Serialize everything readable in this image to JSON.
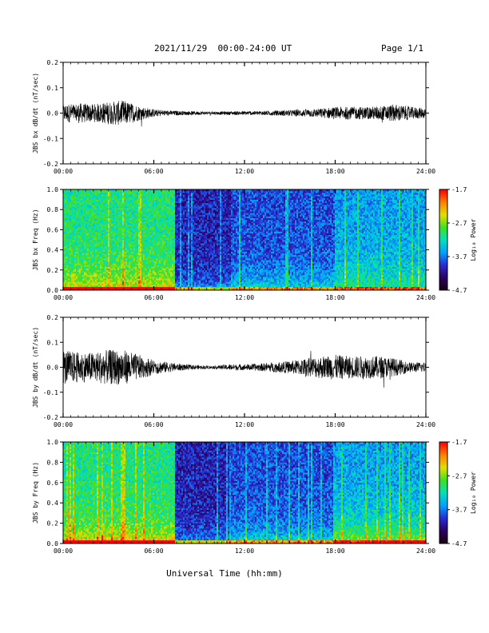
{
  "header": {
    "title": "2021/11/29  00:00-24:00 UT",
    "page": "Page 1/1"
  },
  "xlabel": "Universal Time (hh:mm)",
  "colors": {
    "trace": "#000000",
    "colormap": [
      "#1a0010",
      "#2a0060",
      "#2a2ad0",
      "#00a0ff",
      "#00e0c0",
      "#40e020",
      "#e0e000",
      "#ff8000",
      "#ff0000"
    ]
  },
  "chart_data": [
    {
      "type": "line",
      "ylabel": "JBS bx dB/dt (nT/sec)",
      "xlim": [
        0,
        24
      ],
      "ylim": [
        -0.2,
        0.2
      ],
      "x_ticks": [
        "00:00",
        "06:00",
        "12:00",
        "18:00",
        "24:00"
      ],
      "y_ticks": [
        "-0.2",
        "-0.1",
        "0.0",
        "0.1",
        "0.2"
      ],
      "series": [
        {
          "x": [
            0,
            1,
            2,
            3,
            4,
            5,
            6,
            7,
            8,
            9,
            10,
            11,
            12,
            13,
            14,
            15,
            16,
            17,
            18,
            19,
            20,
            21,
            22,
            23,
            24
          ],
          "amplitude": [
            0.035,
            0.04,
            0.035,
            0.045,
            0.05,
            0.03,
            0.015,
            0.01,
            0.008,
            0.007,
            0.006,
            0.007,
            0.008,
            0.008,
            0.01,
            0.012,
            0.015,
            0.018,
            0.025,
            0.025,
            0.025,
            0.028,
            0.035,
            0.025,
            0.02
          ]
        }
      ]
    },
    {
      "type": "heatmap",
      "ylabel": "JBS bx Freq (Hz)",
      "xlim": [
        0,
        24
      ],
      "ylim": [
        0,
        1.0
      ],
      "x_ticks": [
        "00:00",
        "06:00",
        "12:00",
        "18:00",
        "24:00"
      ],
      "y_ticks": [
        "0.0",
        "0.2",
        "0.4",
        "0.6",
        "0.8",
        "1.0"
      ],
      "colorbar": {
        "label": "Log₁₀ Power",
        "ticks": [
          "-1.7",
          "-2.7",
          "-3.7",
          "-4.7"
        ],
        "range": [
          -4.7,
          -1.7
        ]
      }
    },
    {
      "type": "line",
      "ylabel": "JBS by dB/dt (nT/sec)",
      "xlim": [
        0,
        24
      ],
      "ylim": [
        -0.2,
        0.2
      ],
      "x_ticks": [
        "00:00",
        "06:00",
        "12:00",
        "18:00",
        "24:00"
      ],
      "y_ticks": [
        "-0.2",
        "-0.1",
        "0.0",
        "0.1",
        "0.2"
      ],
      "series": [
        {
          "x": [
            0,
            1,
            2,
            3,
            4,
            5,
            6,
            7,
            8,
            9,
            10,
            11,
            12,
            13,
            14,
            15,
            16,
            17,
            18,
            19,
            20,
            21,
            22,
            23,
            24
          ],
          "amplitude": [
            0.07,
            0.06,
            0.06,
            0.07,
            0.07,
            0.05,
            0.03,
            0.02,
            0.012,
            0.008,
            0.006,
            0.012,
            0.012,
            0.015,
            0.02,
            0.025,
            0.035,
            0.045,
            0.05,
            0.045,
            0.045,
            0.045,
            0.035,
            0.02,
            0.02
          ]
        }
      ]
    },
    {
      "type": "heatmap",
      "ylabel": "JBS by Freq (Hz)",
      "xlim": [
        0,
        24
      ],
      "ylim": [
        0,
        1.0
      ],
      "x_ticks": [
        "00:00",
        "06:00",
        "12:00",
        "18:00",
        "24:00"
      ],
      "y_ticks": [
        "0.0",
        "0.2",
        "0.4",
        "0.6",
        "0.8",
        "1.0"
      ],
      "colorbar": {
        "label": "Log₁₀ Power",
        "ticks": [
          "-1.7",
          "-2.7",
          "-3.7",
          "-4.7"
        ],
        "range": [
          -4.7,
          -1.7
        ]
      }
    }
  ]
}
